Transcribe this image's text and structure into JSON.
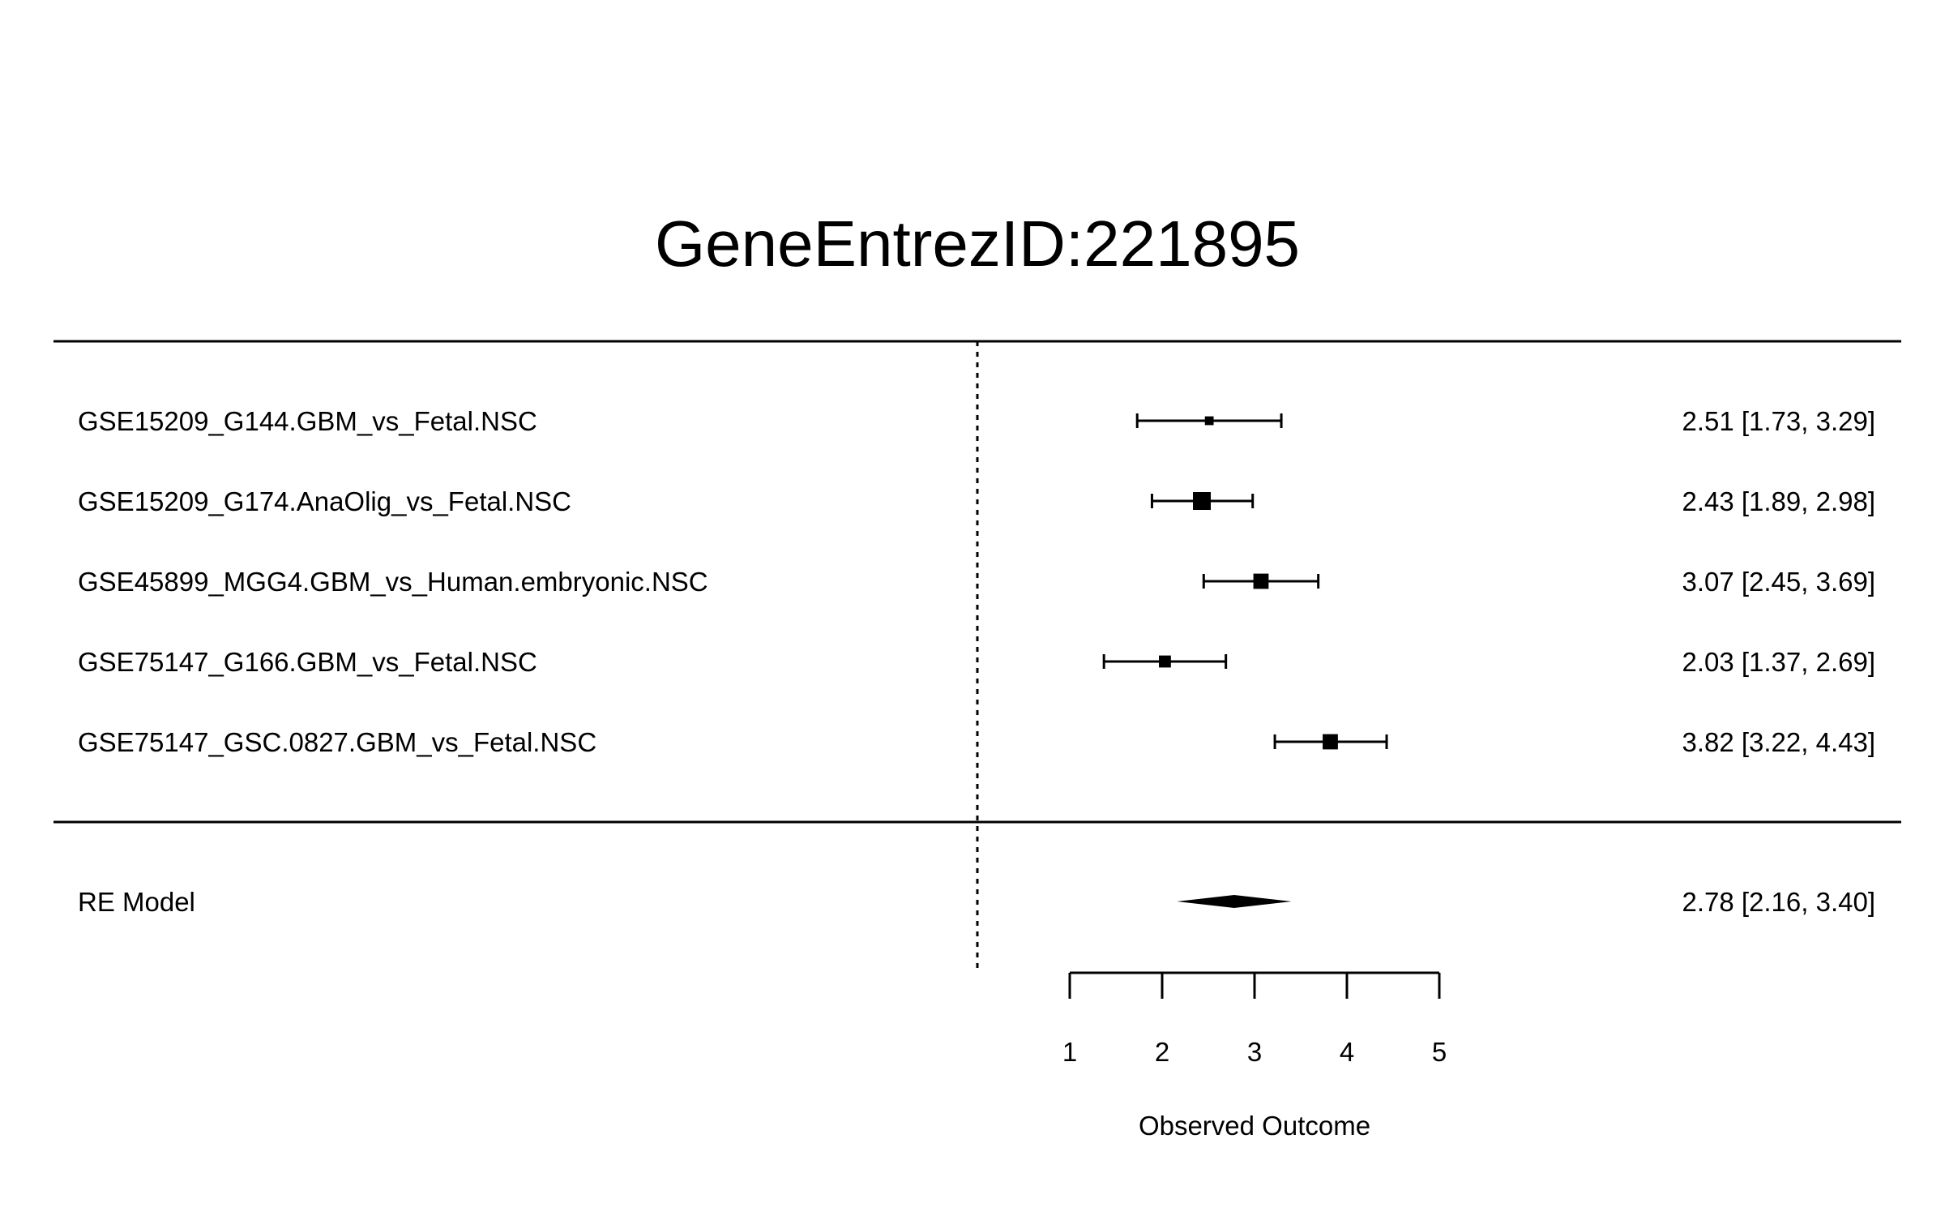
{
  "chart_data": {
    "type": "forest",
    "title": "GeneEntrezID:221895",
    "xlabel": "Observed Outcome",
    "xlim": [
      1,
      5
    ],
    "xticks": [
      1,
      2,
      3,
      4,
      5
    ],
    "reference_line": 0,
    "studies": [
      {
        "label": "GSE15209_G144.GBM_vs_Fetal.NSC",
        "estimate": 2.51,
        "ci_low": 1.73,
        "ci_high": 3.29,
        "weight": 0.3,
        "text": "2.51 [1.73, 3.29]"
      },
      {
        "label": "GSE15209_G174.AnaOlig_vs_Fetal.NSC",
        "estimate": 2.43,
        "ci_low": 1.89,
        "ci_high": 2.98,
        "weight": 1.0,
        "text": "2.43 [1.89, 2.98]"
      },
      {
        "label": "GSE45899_MGG4.GBM_vs_Human.embryonic.NSC",
        "estimate": 3.07,
        "ci_low": 2.45,
        "ci_high": 3.69,
        "weight": 0.8,
        "text": "3.07 [2.45, 3.69]"
      },
      {
        "label": "GSE75147_G166.GBM_vs_Fetal.NSC",
        "estimate": 2.03,
        "ci_low": 1.37,
        "ci_high": 2.69,
        "weight": 0.55,
        "text": "2.03 [1.37, 2.69]"
      },
      {
        "label": "GSE75147_GSC.0827.GBM_vs_Fetal.NSC",
        "estimate": 3.82,
        "ci_low": 3.22,
        "ci_high": 4.43,
        "weight": 0.8,
        "text": "3.82 [3.22, 4.43]"
      }
    ],
    "summary": {
      "label": "RE Model",
      "estimate": 2.78,
      "ci_low": 2.16,
      "ci_high": 3.4,
      "text": "2.78 [2.16, 3.40]"
    }
  }
}
